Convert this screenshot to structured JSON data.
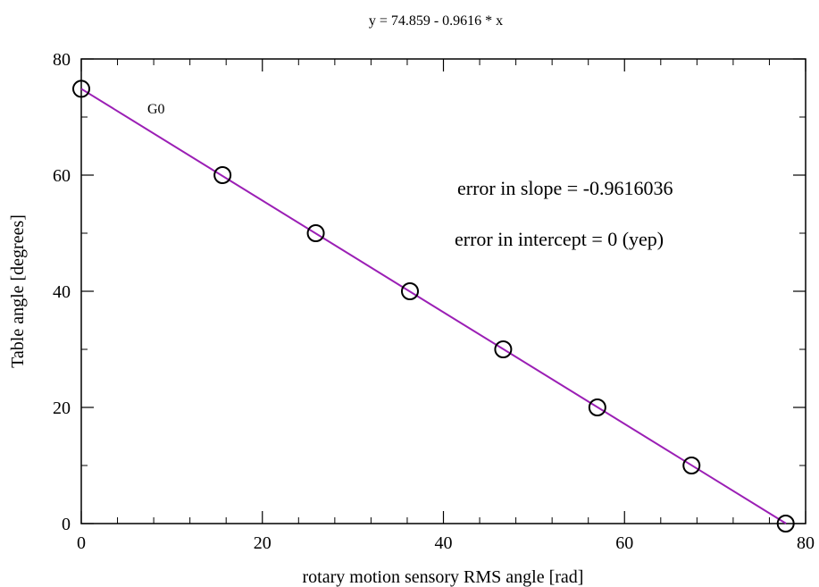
{
  "chart_data": {
    "type": "scatter",
    "title": "y = 74.859 - 0.9616 * x",
    "xlabel": "rotary motion sensory RMS angle [rad]",
    "ylabel": "Table angle [degrees]",
    "xlim": [
      0,
      80
    ],
    "ylim": [
      0,
      80
    ],
    "x_ticks": [
      0,
      20,
      40,
      60,
      80
    ],
    "y_ticks": [
      0,
      20,
      40,
      60,
      80
    ],
    "grid": false,
    "series": [
      {
        "name": "G0",
        "x": [
          0,
          15.6,
          25.9,
          36.3,
          46.6,
          57.0,
          67.4,
          77.8
        ],
        "y": [
          74.859,
          60,
          50,
          40,
          30,
          20,
          10,
          0
        ],
        "marker": "open-circle",
        "color": "#000000"
      }
    ],
    "fit_line": {
      "intercept": 74.859,
      "slope": -0.9616,
      "x_range": [
        0,
        77.85
      ],
      "color": "#9b1fb5"
    },
    "annotations": [
      "error in slope = -0.9616036",
      "error in intercept = 0 (yep)"
    ]
  }
}
